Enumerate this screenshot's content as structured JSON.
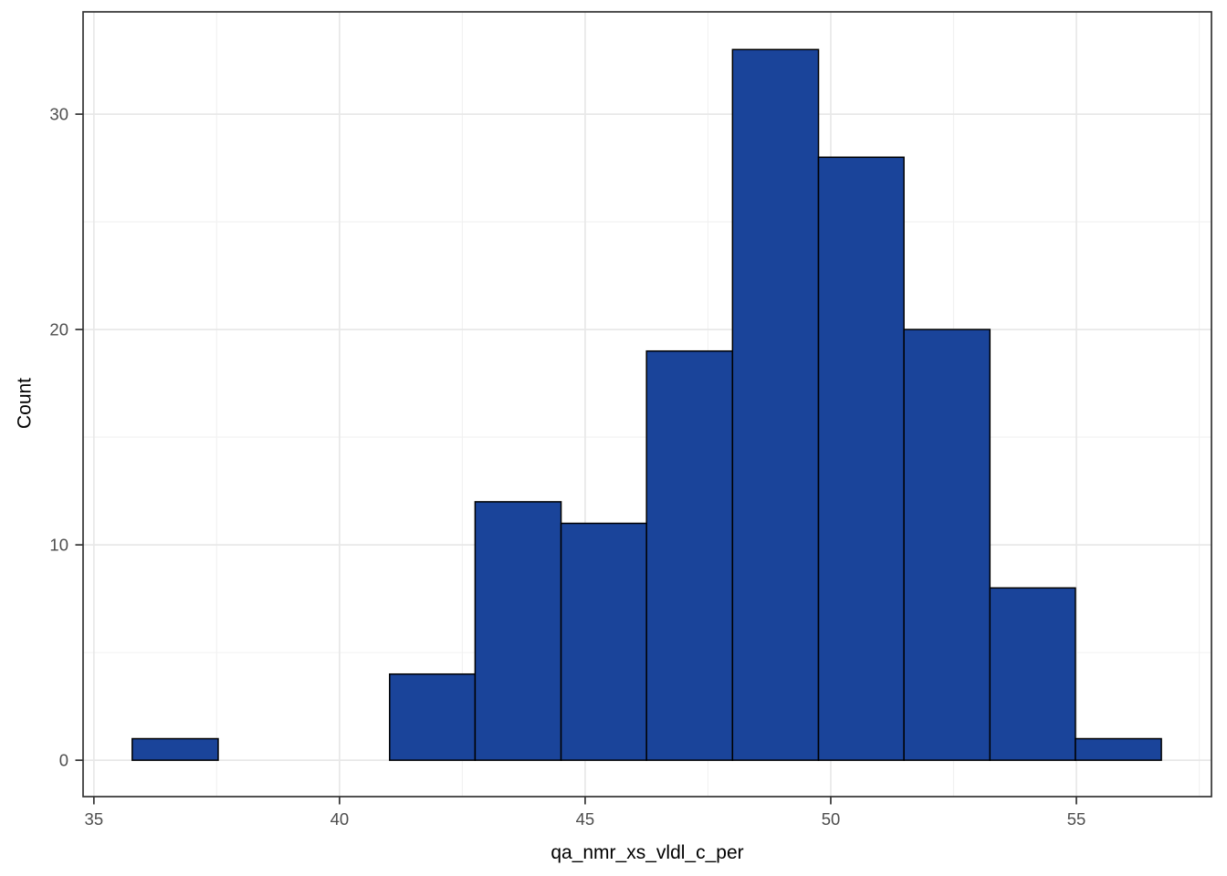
{
  "chart_data": {
    "type": "bar",
    "subtype": "histogram",
    "title": "",
    "xlabel": "qa_nmr_xs_vldl_c_per",
    "ylabel": "Count",
    "bins": [
      {
        "x0": 35.78,
        "x1": 37.53,
        "count": 1
      },
      {
        "x0": 37.53,
        "x1": 39.27,
        "count": 0
      },
      {
        "x0": 39.27,
        "x1": 41.02,
        "count": 0
      },
      {
        "x0": 41.02,
        "x1": 42.76,
        "count": 4
      },
      {
        "x0": 42.76,
        "x1": 44.51,
        "count": 12
      },
      {
        "x0": 44.51,
        "x1": 46.25,
        "count": 11
      },
      {
        "x0": 46.25,
        "x1": 48.0,
        "count": 19
      },
      {
        "x0": 48.0,
        "x1": 49.75,
        "count": 33
      },
      {
        "x0": 49.75,
        "x1": 51.49,
        "count": 28
      },
      {
        "x0": 51.49,
        "x1": 53.24,
        "count": 20
      },
      {
        "x0": 53.24,
        "x1": 54.98,
        "count": 8
      },
      {
        "x0": 54.98,
        "x1": 56.73,
        "count": 1
      }
    ],
    "xlim": [
      34.78,
      57.75
    ],
    "ylim": [
      -1.69,
      34.75
    ],
    "x_ticks": [
      35,
      40,
      45,
      50,
      55
    ],
    "x_minor_ticks": [
      37.5,
      42.5,
      47.5,
      52.5,
      57.5
    ],
    "y_ticks": [
      0,
      10,
      20,
      30
    ],
    "y_minor_ticks": [
      5,
      15,
      25
    ],
    "grid": "on",
    "legend": "none",
    "colors": {
      "bar_fill": "#1a449a",
      "bar_stroke": "#000000",
      "panel_bg": "#ffffff",
      "panel_border": "#333333",
      "grid_major": "#e8e8e8",
      "grid_minor": "#f1f1f1",
      "tick_mark": "#333333",
      "tick_label": "#4d4d4d",
      "axis_title": "#000000"
    }
  }
}
